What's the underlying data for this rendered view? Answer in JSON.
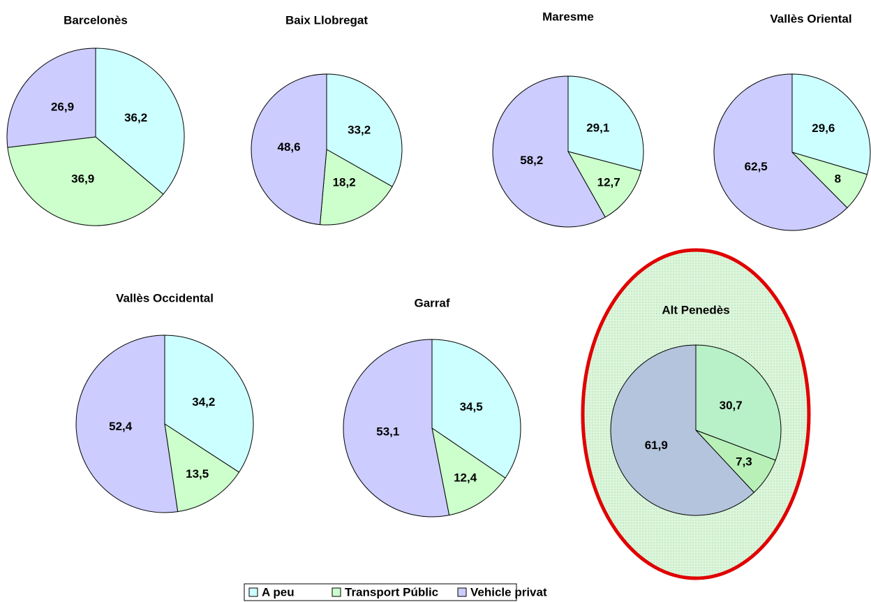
{
  "categories": [
    "A peu",
    "Transport Públic",
    "Vehicle privat"
  ],
  "colors": [
    "#ccffff",
    "#ccffcc",
    "#ccccff"
  ],
  "chart_data": [
    {
      "type": "pie",
      "title": "Barcelonès",
      "values": [
        36.2,
        36.9,
        26.9
      ],
      "value_labels": [
        "36,2",
        "36,9",
        "26,9"
      ],
      "colors": [
        "#ccffff",
        "#ccffcc",
        "#ccccff"
      ]
    },
    {
      "type": "pie",
      "title": "Baix Llobregat",
      "values": [
        33.2,
        18.2,
        48.6
      ],
      "value_labels": [
        "33,2",
        "18,2",
        "48,6"
      ],
      "colors": [
        "#ccffff",
        "#ccffcc",
        "#ccccff"
      ]
    },
    {
      "type": "pie",
      "title": "Maresme",
      "values": [
        29.1,
        12.7,
        58.2
      ],
      "value_labels": [
        "29,1",
        "12,7",
        "58,2"
      ],
      "colors": [
        "#ccffff",
        "#ccffcc",
        "#ccccff"
      ]
    },
    {
      "type": "pie",
      "title": "Vallès Oriental",
      "values": [
        29.6,
        8,
        62.5
      ],
      "value_labels": [
        "29,6",
        "8",
        "62,5"
      ],
      "colors": [
        "#ccffff",
        "#ccffcc",
        "#ccccff"
      ]
    },
    {
      "type": "pie",
      "title": "Vallès Occidental",
      "values": [
        34.2,
        13.5,
        52.4
      ],
      "value_labels": [
        "34,2",
        "13,5",
        "52,4"
      ],
      "colors": [
        "#ccffff",
        "#ccffcc",
        "#ccccff"
      ]
    },
    {
      "type": "pie",
      "title": "Garraf",
      "values": [
        34.5,
        12.4,
        53.1
      ],
      "value_labels": [
        "34,5",
        "12,4",
        "53,1"
      ],
      "colors": [
        "#ccffff",
        "#ccffcc",
        "#ccccff"
      ]
    },
    {
      "type": "pie",
      "title": "Alt Penedès",
      "values": [
        30.7,
        7.3,
        61.9
      ],
      "value_labels": [
        "30,7",
        "7,3",
        "61,9"
      ],
      "colors": [
        "#b8f0c8",
        "#b8f0b8",
        "#b4c4dc"
      ]
    }
  ]
}
